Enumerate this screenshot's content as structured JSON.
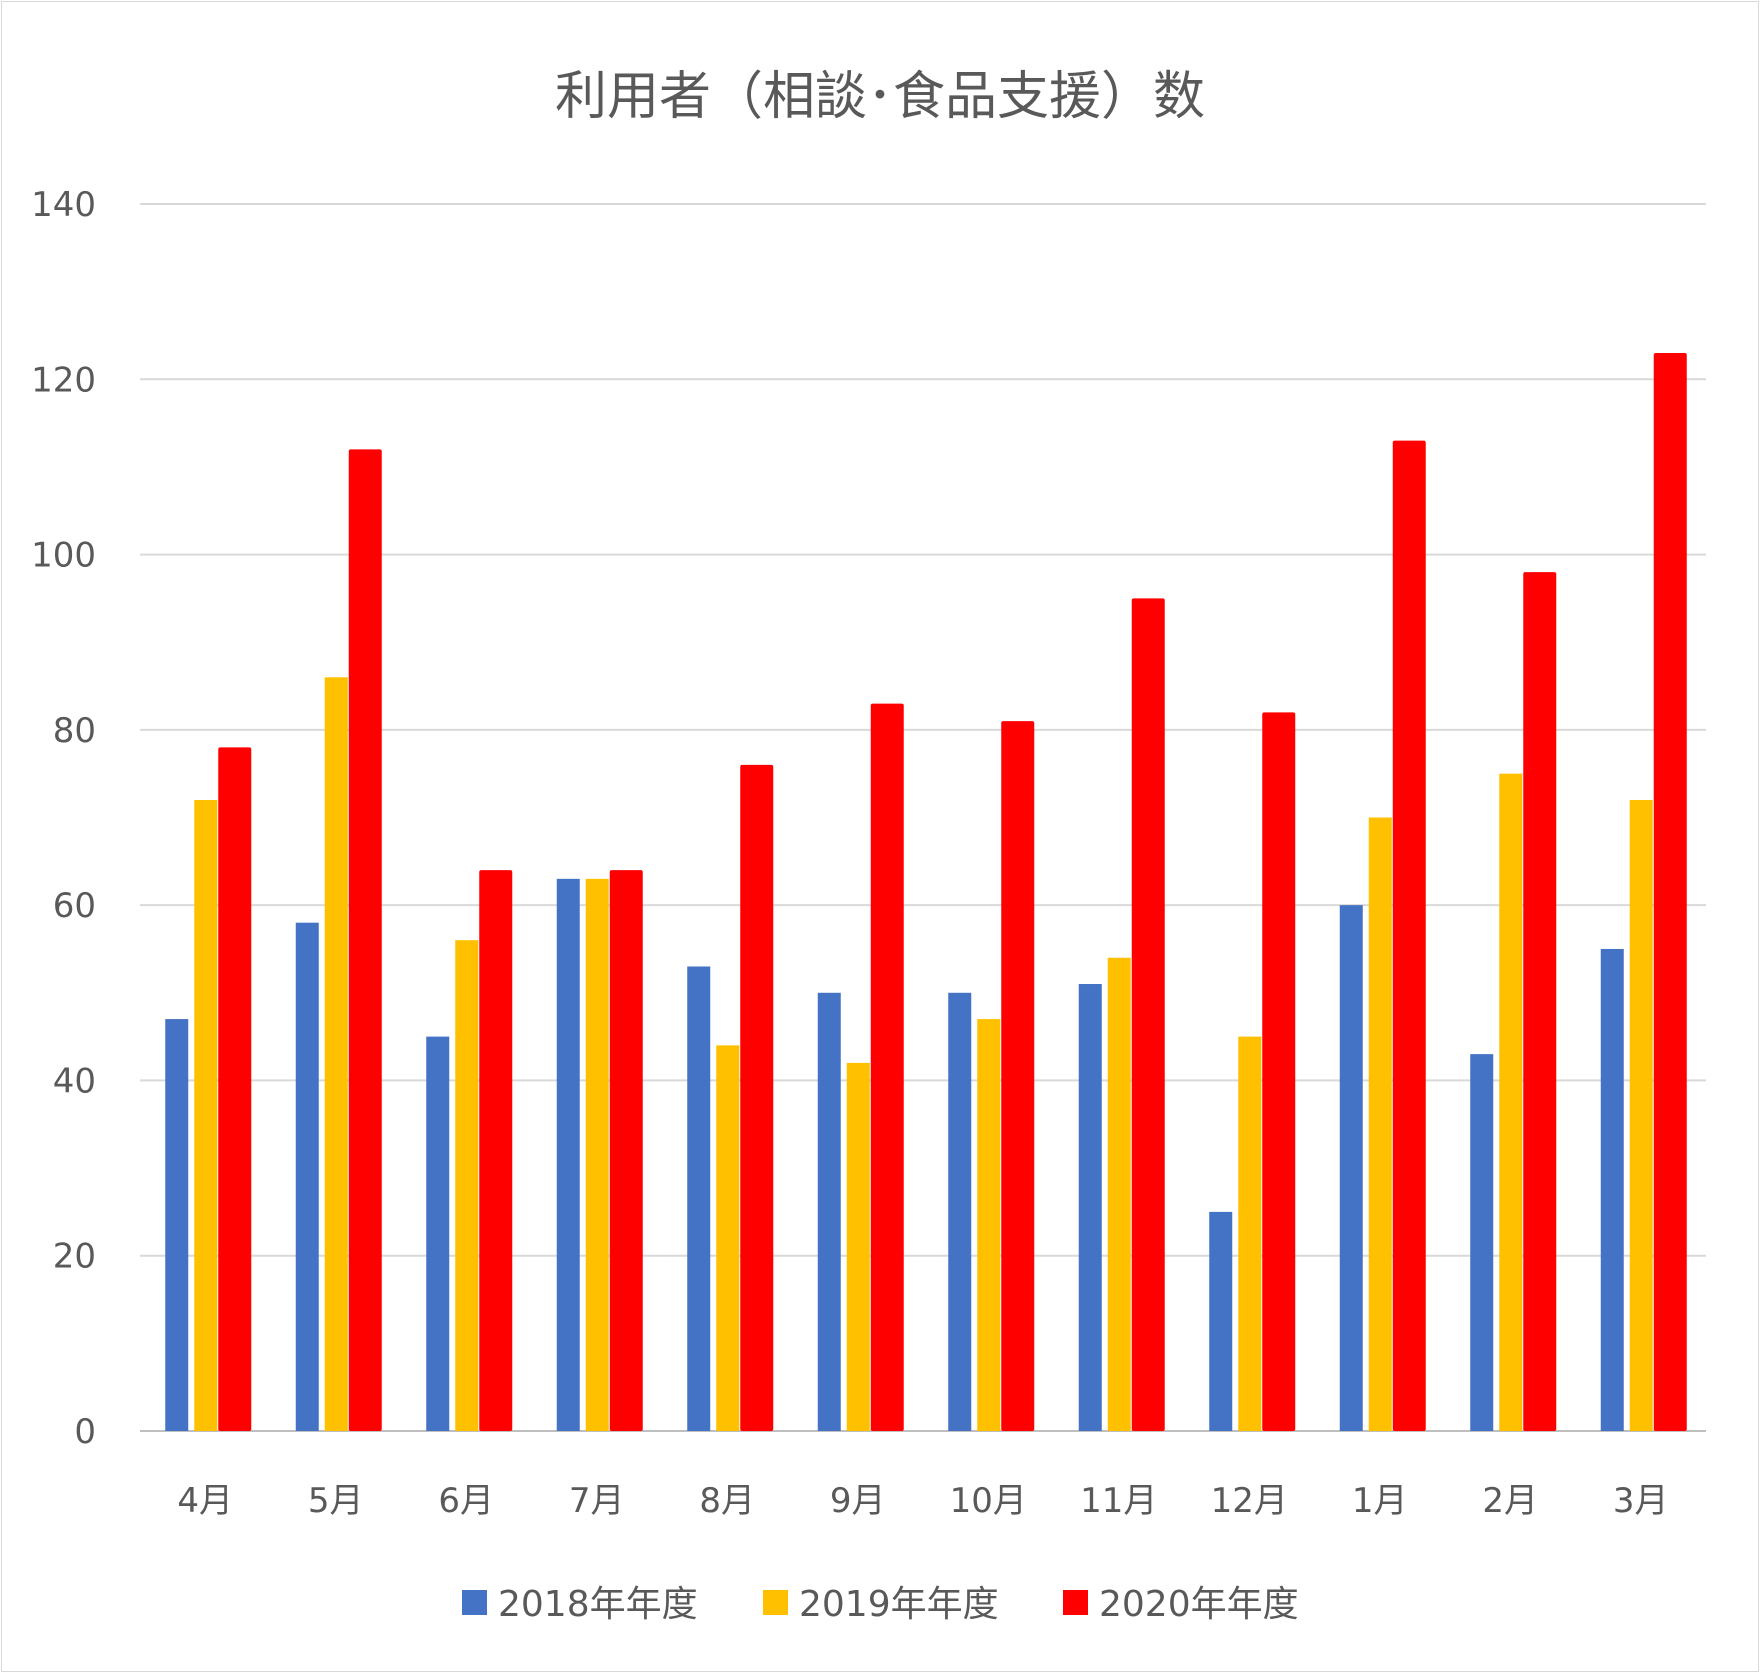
{
  "chart_data": {
    "type": "bar",
    "title": "利用者（相談･食品支援）数",
    "xlabel": "",
    "ylabel": "",
    "ylim": [
      0,
      140
    ],
    "yticks": [
      0,
      20,
      40,
      60,
      80,
      100,
      120,
      140
    ],
    "grid": true,
    "legend_position": "bottom",
    "categories": [
      "4月",
      "5月",
      "6月",
      "7月",
      "8月",
      "9月",
      "10月",
      "11月",
      "12月",
      "1月",
      "2月",
      "3月"
    ],
    "series": [
      {
        "name": "2018年年度",
        "color": "#4472c4",
        "values": [
          47,
          58,
          45,
          63,
          53,
          50,
          50,
          51,
          25,
          60,
          43,
          55
        ]
      },
      {
        "name": "2019年年度",
        "color": "#ffc000",
        "values": [
          72,
          86,
          56,
          63,
          44,
          42,
          47,
          54,
          45,
          70,
          75,
          72
        ]
      },
      {
        "name": "2020年年度",
        "color": "#ff0000",
        "values": [
          78,
          112,
          64,
          64,
          76,
          83,
          81,
          95,
          82,
          113,
          98,
          123
        ]
      }
    ]
  }
}
